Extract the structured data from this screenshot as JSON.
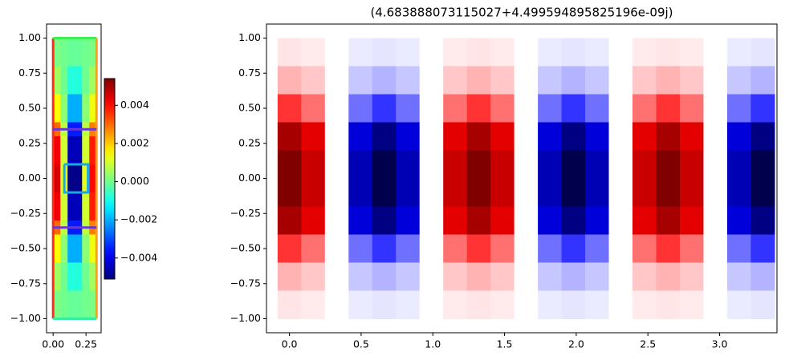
{
  "chart_data": [
    {
      "type": "heatmap",
      "colormap": "jet",
      "xlim": [
        -0.05,
        0.365
      ],
      "ylim": [
        -1.1,
        1.1
      ],
      "xticks": [
        {
          "value": 0,
          "label": "0.00"
        },
        0.25
      ],
      "yticks": [
        {
          "value": 1,
          "label": "1.00"
        },
        0.75,
        {
          "value": 0.5,
          "label": "0.50"
        },
        0.25,
        {
          "value": 0,
          "label": "0.00"
        },
        {
          "value": -0.25,
          "label": "−0.25"
        },
        {
          "value": -0.5,
          "label": "−0.50"
        },
        {
          "value": -0.75,
          "label": "−0.75"
        },
        {
          "value": -1,
          "label": "−1.00"
        }
      ],
      "x": [
        0.0275,
        0.0825,
        0.1375,
        0.1925,
        0.2475,
        0.3025
      ],
      "y": [
        0.95,
        0.85,
        0.75,
        0.65,
        0.55,
        0.45,
        0.35,
        0.25,
        0.15,
        0.05,
        -0.05,
        -0.15,
        -0.25,
        -0.35,
        -0.45,
        -0.55,
        -0.65,
        -0.75,
        -0.85,
        -0.95
      ],
      "z": [
        [
          0.0001,
          0,
          -0.0001,
          -0.0001,
          0,
          0.0001
        ],
        [
          0.0001,
          0,
          -0.0001,
          -0.0001,
          0,
          0.0001
        ],
        [
          0.0005,
          0,
          -0.0008,
          -0.0008,
          0,
          0.0005
        ],
        [
          0.0005,
          0,
          -0.0008,
          -0.0008,
          0,
          0.0005
        ],
        [
          0.0015,
          0.0003,
          -0.002,
          -0.002,
          0.0003,
          0.0013
        ],
        [
          0.0015,
          0.0003,
          -0.002,
          -0.002,
          0.0003,
          0.0013
        ],
        [
          0.003,
          0.0008,
          -0.0035,
          -0.0035,
          0.0008,
          0.0028
        ],
        [
          0.0042,
          0.001,
          -0.0045,
          -0.0045,
          0.001,
          0.0038
        ],
        [
          0.0042,
          0.001,
          -0.0045,
          -0.0045,
          0.001,
          0.0038
        ],
        [
          0.0045,
          0.0012,
          -0.005,
          -0.005,
          0.0012,
          0.004
        ],
        [
          0.0045,
          0.0012,
          -0.005,
          -0.005,
          0.0012,
          0.004
        ],
        [
          0.0042,
          0.001,
          -0.0045,
          -0.0045,
          0.001,
          0.0038
        ],
        [
          0.0042,
          0.001,
          -0.0045,
          -0.0045,
          0.001,
          0.0038
        ],
        [
          0.003,
          0.0008,
          -0.0035,
          -0.0035,
          0.0008,
          0.0028
        ],
        [
          0.0015,
          0.0003,
          -0.002,
          -0.002,
          0.0003,
          0.0013
        ],
        [
          0.0015,
          0.0003,
          -0.002,
          -0.002,
          0.0003,
          0.0013
        ],
        [
          0.0005,
          0,
          -0.0008,
          -0.0008,
          0,
          0.0005
        ],
        [
          0.0005,
          0,
          -0.0008,
          -0.0008,
          0,
          0.0005
        ],
        [
          0.0001,
          0,
          -0.0001,
          -0.0001,
          0,
          0.0001
        ],
        [
          0.0001,
          0,
          -0.0001,
          -0.0001,
          0,
          0.0001
        ]
      ],
      "clim": [
        -0.0051,
        0.0054
      ],
      "colorbar_ticks": [
        {
          "value": 0.004,
          "label": "0.004"
        },
        {
          "value": 0.002,
          "label": "0.002"
        },
        {
          "value": 0,
          "label": "0.000"
        },
        {
          "value": -0.002,
          "label": "−0.002"
        },
        {
          "value": -0.004,
          "label": "−0.004"
        }
      ],
      "boundaries": [
        {
          "color": "#ff2a1a",
          "x": [
            0,
            0
          ],
          "y": [
            -1,
            1
          ]
        },
        {
          "color": "#ffa020",
          "x": [
            0.33,
            0.33
          ],
          "y": [
            -1,
            1
          ]
        },
        {
          "color": "#3cf050",
          "x": [
            0,
            0.33
          ],
          "y": [
            1,
            1
          ]
        },
        {
          "color": "#30f0a0",
          "x": [
            0,
            0.33
          ],
          "y": [
            -1,
            -1
          ]
        },
        {
          "color": "#6b35d9",
          "x": [
            0,
            0.33
          ],
          "y": [
            0.35,
            0.35
          ]
        },
        {
          "color": "#6b35d9",
          "x": [
            0,
            0.33
          ],
          "y": [
            -0.35,
            -0.35
          ]
        },
        {
          "color": "#1aa8e8",
          "x": [
            0.085,
            0.265,
            0.265,
            0.085,
            0.085
          ],
          "y": [
            0.1,
            0.1,
            -0.1,
            -0.1,
            0.1
          ]
        }
      ]
    },
    {
      "type": "heatmap",
      "colormap": "seismic",
      "title": "(4.683888073115027+4.499594895825196e-09j)",
      "xlim": [
        -0.16,
        3.4
      ],
      "ylim": [
        -1.1,
        1.1
      ],
      "xticks": [
        {
          "value": 0,
          "label": "0.0"
        },
        0.5,
        {
          "value": 1,
          "label": "1.0"
        },
        1.5,
        {
          "value": 2,
          "label": "2.0"
        },
        2.5,
        {
          "value": 3,
          "label": "3.0"
        }
      ],
      "yticks": [
        {
          "value": 1,
          "label": "1.00"
        },
        0.75,
        {
          "value": 0.5,
          "label": "0.50"
        },
        0.25,
        {
          "value": 0,
          "label": "0.00"
        },
        {
          "value": -0.25,
          "label": "−0.25"
        },
        {
          "value": -0.5,
          "label": "−0.50"
        },
        {
          "value": -0.75,
          "label": "−0.75"
        },
        {
          "value": -1,
          "label": "−1.00"
        }
      ],
      "x": [
        0,
        0.165,
        0.33,
        0.495,
        0.66,
        0.825,
        0.99,
        1.155,
        1.32,
        1.485,
        1.65,
        1.815,
        1.98,
        2.145,
        2.31,
        2.475,
        2.64,
        2.805,
        2.97,
        3.135,
        3.3
      ],
      "y": [
        0.9,
        0.7,
        0.5,
        0.3,
        0.1,
        -0.1,
        -0.3,
        -0.5,
        -0.7,
        -0.9
      ],
      "z": [
        [
          0.05,
          0.04,
          0,
          -0.04,
          -0.05,
          -0.04,
          0,
          0.04,
          0.05,
          0.04,
          0,
          -0.04,
          -0.05,
          -0.04,
          0,
          0.04,
          0.05,
          0.04,
          0,
          -0.04,
          -0.05
        ],
        [
          0.15,
          0.11,
          0,
          -0.11,
          -0.15,
          -0.11,
          0,
          0.11,
          0.15,
          0.11,
          0,
          -0.11,
          -0.15,
          -0.11,
          0,
          0.11,
          0.15,
          0.11,
          0,
          -0.11,
          -0.15
        ],
        [
          0.4,
          0.28,
          0,
          -0.28,
          -0.4,
          -0.28,
          0,
          0.28,
          0.4,
          0.28,
          0,
          -0.28,
          -0.4,
          -0.28,
          0,
          0.28,
          0.4,
          0.28,
          0,
          -0.28,
          -0.4
        ],
        [
          0.85,
          0.6,
          0,
          -0.6,
          -0.85,
          -0.6,
          0,
          0.6,
          0.85,
          0.6,
          0,
          -0.6,
          -0.85,
          -0.6,
          0,
          0.6,
          0.85,
          0.6,
          0,
          -0.6,
          -0.85
        ],
        [
          1,
          0.71,
          0,
          -0.71,
          -1,
          -0.71,
          0,
          0.71,
          1,
          0.71,
          0,
          -0.71,
          -1,
          -0.71,
          0,
          0.71,
          1,
          0.71,
          0,
          -0.71,
          -1
        ],
        [
          1,
          0.71,
          0,
          -0.71,
          -1,
          -0.71,
          0,
          0.71,
          1,
          0.71,
          0,
          -0.71,
          -1,
          -0.71,
          0,
          0.71,
          1,
          0.71,
          0,
          -0.71,
          -1
        ],
        [
          0.85,
          0.6,
          0,
          -0.6,
          -0.85,
          -0.6,
          0,
          0.6,
          0.85,
          0.6,
          0,
          -0.6,
          -0.85,
          -0.6,
          0,
          0.6,
          0.85,
          0.6,
          0,
          -0.6,
          -0.85
        ],
        [
          0.4,
          0.28,
          0,
          -0.28,
          -0.4,
          -0.28,
          0,
          0.28,
          0.4,
          0.28,
          0,
          -0.28,
          -0.4,
          -0.28,
          0,
          0.28,
          0.4,
          0.28,
          0,
          -0.28,
          -0.4
        ],
        [
          0.15,
          0.11,
          0,
          -0.11,
          -0.15,
          -0.11,
          0,
          0.11,
          0.15,
          0.11,
          0,
          -0.11,
          -0.15,
          -0.11,
          0,
          0.11,
          0.15,
          0.11,
          0,
          -0.11,
          -0.15
        ],
        [
          0.05,
          0.04,
          0,
          -0.04,
          -0.05,
          -0.04,
          0,
          0.04,
          0.05,
          0.04,
          0,
          -0.04,
          -0.05,
          -0.04,
          0,
          0.04,
          0.05,
          0.04,
          0,
          -0.04,
          -0.05
        ]
      ],
      "clim": [
        -1,
        1
      ]
    }
  ]
}
